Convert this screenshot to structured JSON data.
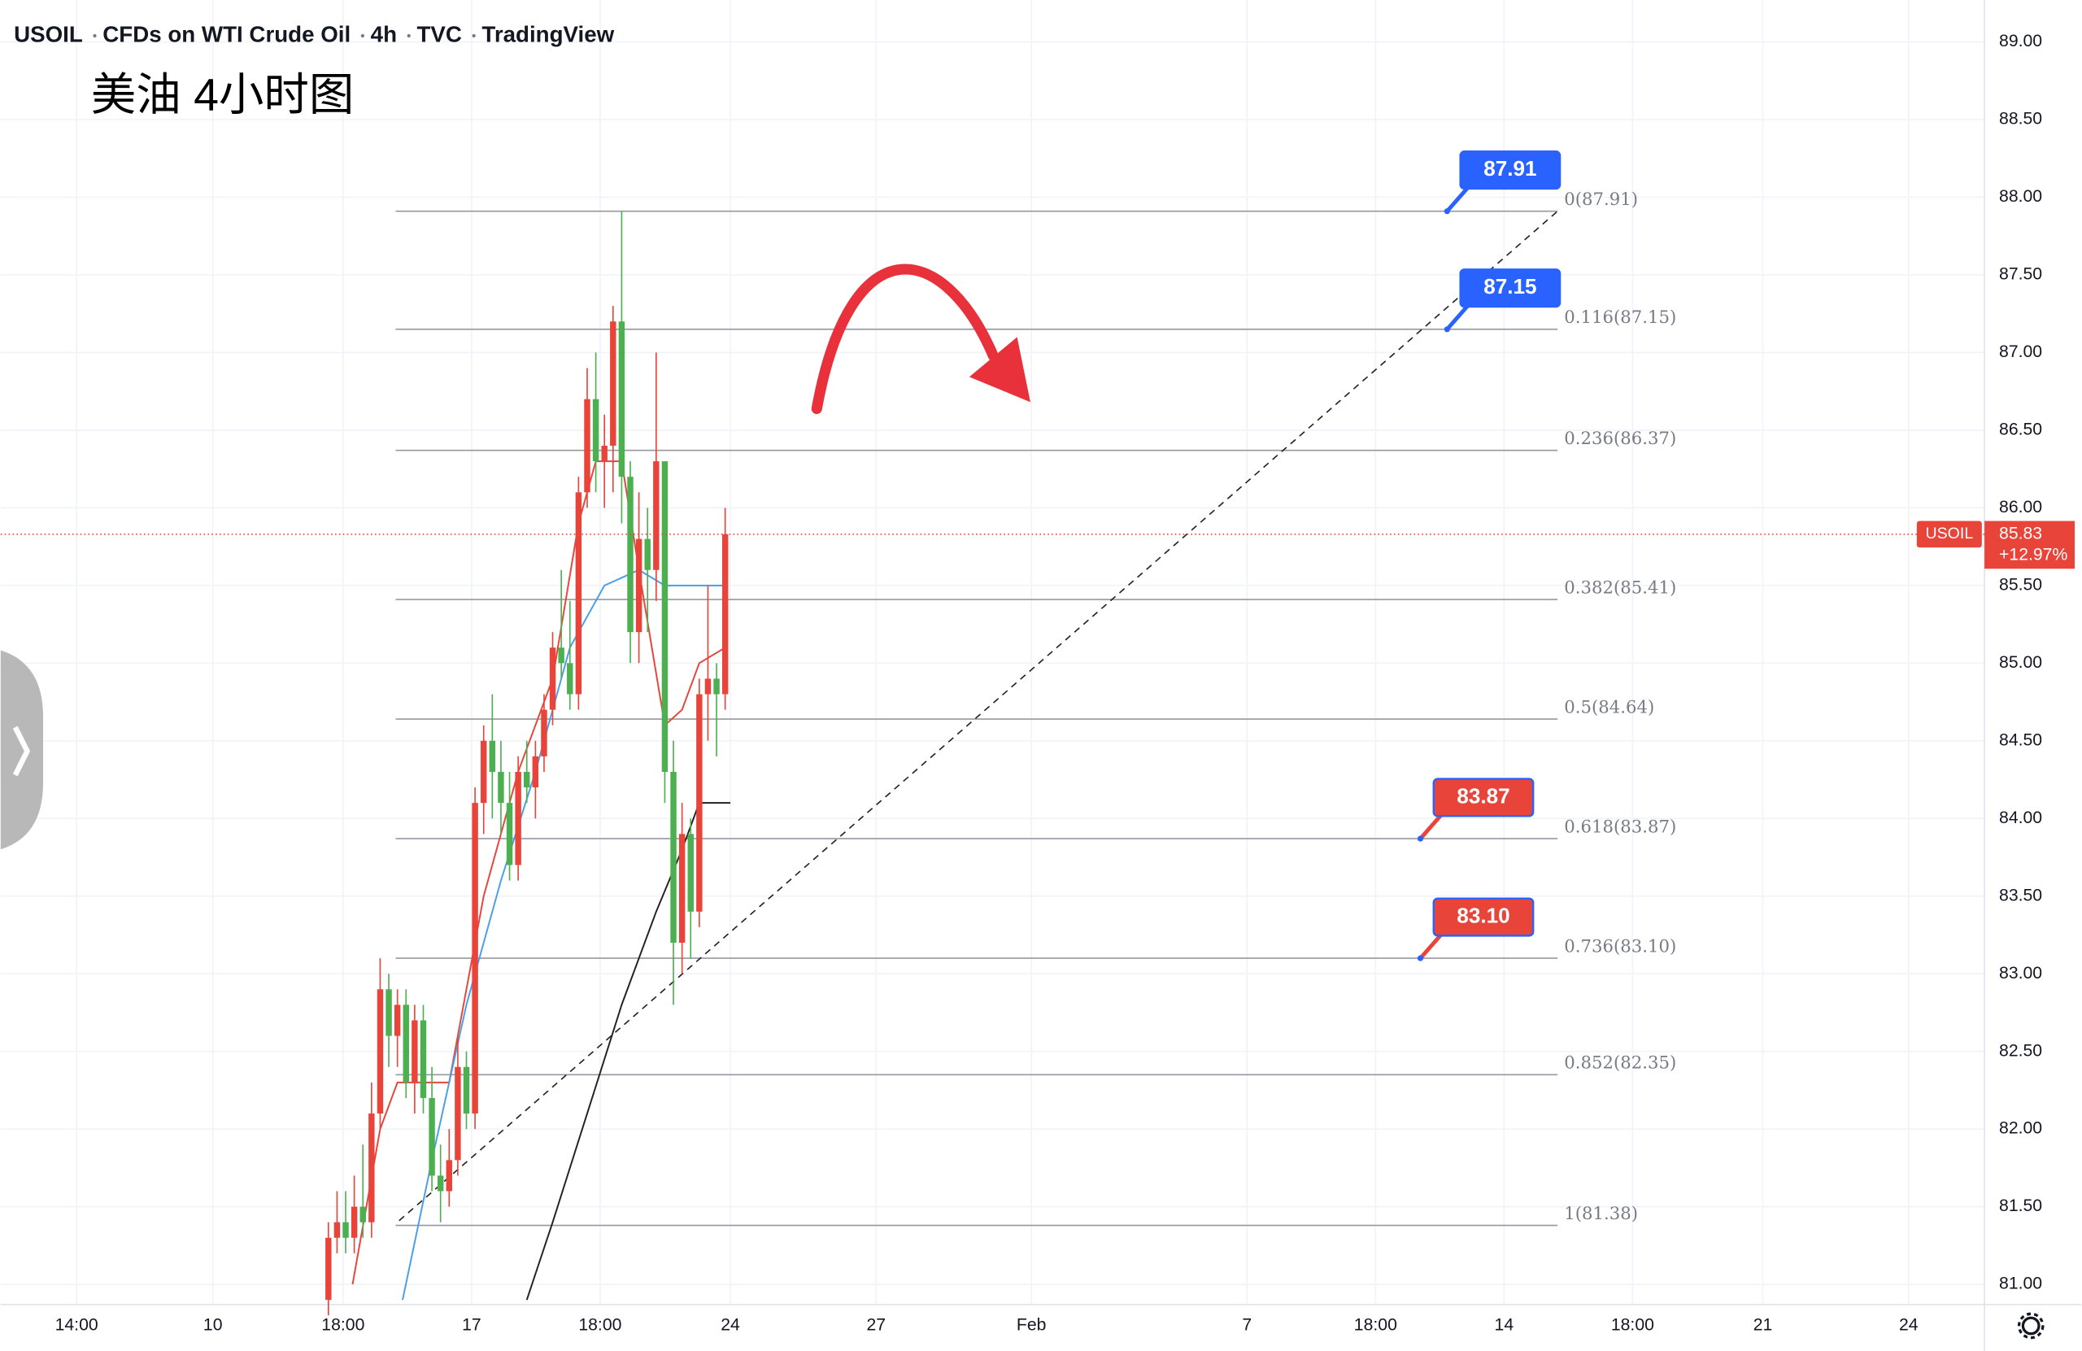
{
  "chart_data": {
    "type": "candlestick",
    "header": [
      "USOIL",
      "CFDs on WTI Crude Oil",
      "4h",
      "TVC",
      "TradingView"
    ],
    "title": "美油 4小时图",
    "xlim": [
      0,
      230
    ],
    "ylim": [
      80.87,
      89.27
    ],
    "xticks": [
      {
        "value": 8.8,
        "label": "14:00"
      },
      {
        "value": 24.6,
        "label": "10"
      },
      {
        "value": 39.7,
        "label": "18:00"
      },
      {
        "value": 54.6,
        "label": "17"
      },
      {
        "value": 69.5,
        "label": "18:00"
      },
      {
        "value": 84.6,
        "label": "24"
      },
      {
        "value": 101.5,
        "label": "27"
      },
      {
        "value": 119.5,
        "label": "Feb"
      },
      {
        "value": 144.5,
        "label": "7"
      },
      {
        "value": 159.4,
        "label": "18:00"
      },
      {
        "value": 174.3,
        "label": "14"
      },
      {
        "value": 189.2,
        "label": "18:00"
      },
      {
        "value": 204.3,
        "label": "21"
      },
      {
        "value": 221.2,
        "label": "24"
      }
    ],
    "yticks": [
      {
        "value": 81,
        "label": "81.00"
      },
      {
        "value": 81.5,
        "label": "81.50"
      },
      {
        "value": 82,
        "label": "82.00"
      },
      {
        "value": 82.5,
        "label": "82.50"
      },
      {
        "value": 83,
        "label": "83.00"
      },
      {
        "value": 83.5,
        "label": "83.50"
      },
      {
        "value": 84,
        "label": "84.00"
      },
      {
        "value": 84.5,
        "label": "84.50"
      },
      {
        "value": 85,
        "label": "85.00"
      },
      {
        "value": 85.5,
        "label": "85.50"
      },
      {
        "value": 86,
        "label": "86.00"
      },
      {
        "value": 86.5,
        "label": "86.50"
      },
      {
        "value": 87,
        "label": "87.00"
      },
      {
        "value": 87.5,
        "label": "87.50"
      },
      {
        "value": 88,
        "label": "88.00"
      },
      {
        "value": 88.5,
        "label": "88.50"
      },
      {
        "value": 89,
        "label": "89.00"
      }
    ],
    "grid": true,
    "up_color": "#e8443a",
    "down_color": "#4caf50",
    "x": [
      38,
      39,
      40,
      41,
      42,
      43,
      44,
      45,
      46,
      47,
      48,
      49,
      50,
      51,
      52,
      53,
      54,
      55,
      56,
      57,
      58,
      59,
      60,
      61,
      62,
      63,
      64,
      65,
      66,
      67,
      68,
      69,
      70,
      71,
      72,
      73,
      74,
      75,
      76,
      77,
      78,
      79,
      80,
      81,
      82,
      83,
      84
    ],
    "open": [
      80.9,
      81.3,
      81.4,
      81.3,
      81.5,
      81.4,
      82.1,
      82.9,
      82.6,
      82.8,
      82.3,
      82.7,
      82.2,
      81.7,
      81.6,
      81.8,
      82.4,
      82.1,
      84.1,
      84.5,
      84.3,
      84.1,
      83.7,
      84.3,
      84.2,
      84.4,
      84.7,
      85.1,
      85.0,
      84.8,
      86.1,
      86.7,
      86.3,
      86.4,
      87.2,
      86.2,
      85.2,
      85.8,
      85.6,
      86.3,
      84.3,
      83.2,
      83.9,
      83.4,
      84.8,
      84.9,
      84.8
    ],
    "high": [
      81.4,
      81.6,
      81.6,
      81.7,
      81.9,
      82.3,
      83.1,
      83.0,
      82.9,
      82.9,
      82.8,
      82.8,
      82.4,
      81.9,
      82.0,
      82.6,
      82.5,
      84.2,
      84.6,
      84.8,
      84.5,
      84.3,
      84.4,
      84.5,
      84.5,
      84.8,
      85.2,
      85.6,
      85.4,
      86.2,
      86.9,
      87.0,
      86.6,
      87.3,
      87.91,
      86.3,
      86.1,
      86.0,
      87.0,
      86.3,
      84.5,
      84.1,
      84.0,
      84.9,
      85.5,
      85.0,
      86.0
    ],
    "low": [
      80.8,
      81.2,
      81.2,
      81.2,
      81.3,
      81.3,
      82.0,
      82.4,
      82.4,
      82.2,
      82.1,
      82.1,
      81.6,
      81.4,
      81.5,
      81.7,
      82.0,
      82.0,
      83.9,
      84.0,
      83.9,
      83.6,
      83.6,
      84.1,
      84.0,
      84.3,
      84.6,
      84.9,
      84.7,
      84.7,
      86.0,
      86.1,
      86.0,
      86.1,
      85.9,
      85.0,
      85.0,
      85.2,
      85.4,
      84.1,
      82.8,
      83.0,
      83.1,
      83.3,
      84.5,
      84.4,
      84.7
    ],
    "close": [
      81.3,
      81.4,
      81.3,
      81.5,
      81.4,
      82.1,
      82.9,
      82.6,
      82.8,
      82.3,
      82.7,
      82.2,
      81.7,
      81.6,
      81.8,
      82.4,
      82.1,
      84.1,
      84.5,
      84.3,
      84.1,
      83.7,
      84.3,
      84.2,
      84.4,
      84.7,
      85.1,
      85.0,
      84.8,
      86.1,
      86.7,
      86.3,
      86.4,
      87.2,
      86.2,
      85.2,
      85.8,
      85.6,
      86.3,
      84.3,
      83.2,
      83.9,
      83.4,
      84.8,
      84.9,
      84.8,
      85.83
    ],
    "moving_averages": [
      {
        "color": "#e8443a",
        "x": [
          40.8,
          44,
          46,
          50,
          52,
          56,
          60,
          64,
          67,
          69,
          72,
          74,
          77,
          79,
          81,
          84
        ],
        "values": [
          81.0,
          82.0,
          82.3,
          82.3,
          82.3,
          83.5,
          84.3,
          84.9,
          85.9,
          86.3,
          86.3,
          85.6,
          84.6,
          84.7,
          85.0,
          85.1
        ]
      },
      {
        "color": "#4a9ee8",
        "x": [
          46.6,
          50,
          54,
          58,
          62,
          66,
          70,
          74,
          77,
          79,
          81,
          84
        ],
        "values": [
          80.9,
          81.8,
          82.8,
          83.6,
          84.3,
          85.1,
          85.5,
          85.6,
          85.5,
          85.5,
          85.5,
          85.5
        ]
      },
      {
        "color": "#222222",
        "x": [
          61,
          64,
          68,
          72,
          76,
          79,
          81,
          84.6
        ],
        "values": [
          80.9,
          81.4,
          82.1,
          82.8,
          83.4,
          83.8,
          84.1,
          84.1
        ]
      }
    ],
    "fib_levels": [
      {
        "value": 87.91,
        "label": "0(87.91)"
      },
      {
        "value": 87.15,
        "label": "0.116(87.15)"
      },
      {
        "value": 86.37,
        "label": "0.236(86.37)"
      },
      {
        "value": 85.41,
        "label": "0.382(85.41)"
      },
      {
        "value": 84.64,
        "label": "0.5(84.64)"
      },
      {
        "value": 83.87,
        "label": "0.618(83.87)"
      },
      {
        "value": 83.1,
        "label": "0.736(83.10)"
      },
      {
        "value": 82.35,
        "label": "0.852(82.35)"
      },
      {
        "value": 81.38,
        "label": "1(81.38)"
      }
    ],
    "fib_x": [
      45.8,
      180.5
    ],
    "trendline": {
      "x": [
        46.2,
        180.5
      ],
      "y": [
        81.41,
        87.91
      ]
    },
    "callouts": [
      {
        "price": 87.91,
        "label": "87.91",
        "color": "#2962ff",
        "x": 167.7
      },
      {
        "price": 87.15,
        "label": "87.15",
        "color": "#2962ff",
        "x": 167.7
      },
      {
        "price": 83.87,
        "label": "83.87",
        "color": "#e8443a",
        "x": 164.6
      },
      {
        "price": 83.1,
        "label": "83.10",
        "color": "#e8443a",
        "x": 164.6
      }
    ],
    "last_price": {
      "symbol": "USOIL",
      "value": 85.83,
      "change": "+12.97%",
      "color": "#e8443a"
    }
  }
}
